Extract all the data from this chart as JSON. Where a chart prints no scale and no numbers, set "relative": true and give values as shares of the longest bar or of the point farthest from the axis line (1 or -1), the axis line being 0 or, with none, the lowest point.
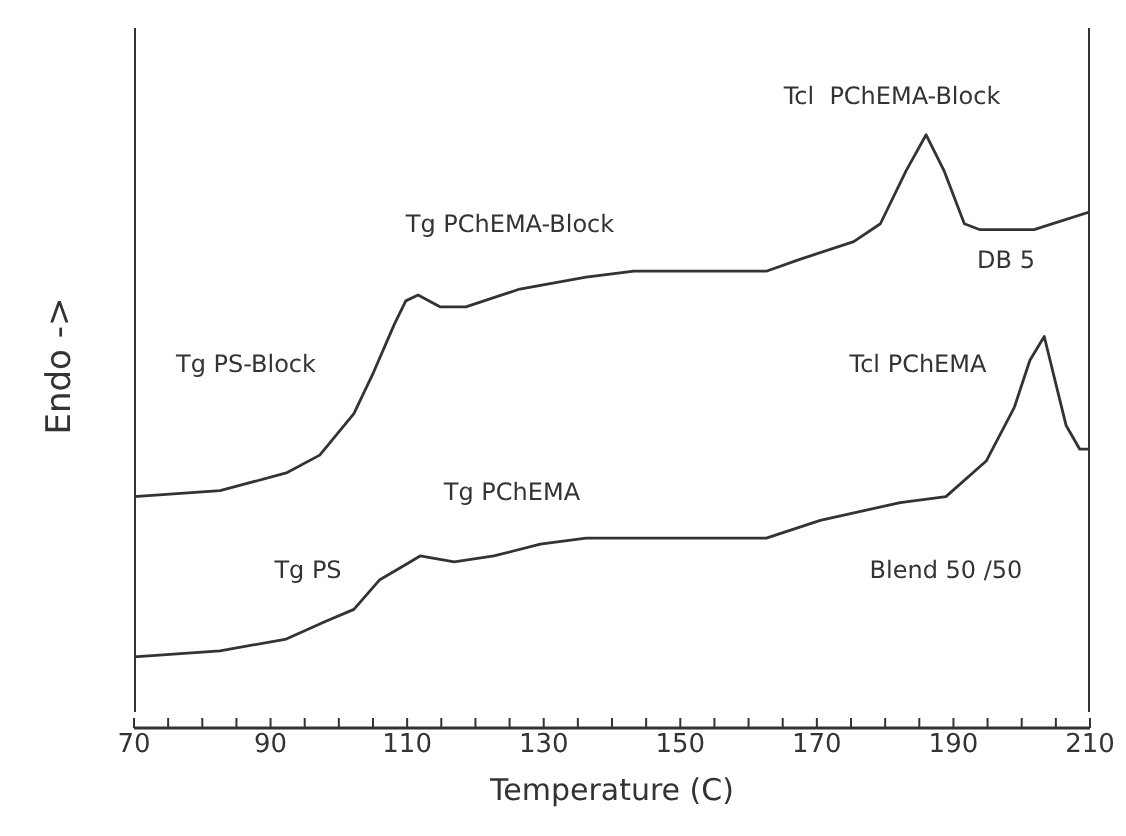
{
  "chart_data": {
    "type": "line",
    "relative": true,
    "xlabel": "Temperature (C)",
    "ylabel": "Endo ->",
    "xlim": [
      70,
      210
    ],
    "xticks": [
      70,
      {
        "value": 75,
        "label": null
      },
      {
        "value": 80,
        "label": null
      },
      {
        "value": 85,
        "label": null
      },
      90,
      {
        "value": 95,
        "label": null
      },
      {
        "value": 100,
        "label": null
      },
      {
        "value": 105,
        "label": null
      },
      110,
      {
        "value": 115,
        "label": null
      },
      {
        "value": 120,
        "label": null
      },
      {
        "value": 125,
        "label": null
      },
      130,
      {
        "value": 135,
        "label": null
      },
      {
        "value": 140,
        "label": null
      },
      {
        "value": 145,
        "label": null
      },
      150,
      {
        "value": 155,
        "label": null
      },
      {
        "value": 160,
        "label": null
      },
      {
        "value": 165,
        "label": null
      },
      170,
      {
        "value": 175,
        "label": null
      },
      {
        "value": 180,
        "label": null
      },
      {
        "value": 185,
        "label": null
      },
      190,
      {
        "value": 195,
        "label": null
      },
      {
        "value": 200,
        "label": null
      },
      {
        "value": 205,
        "label": null
      },
      210
    ],
    "grid": false,
    "legend": false,
    "marker": "none",
    "line_style": "solid",
    "series": [
      {
        "color": "#333333",
        "x": [
          70,
          82.6,
          92.3,
          97.2,
          102.2,
          105.1,
          108.1,
          109.8,
          111.6,
          114.8,
          118.6,
          126.5,
          136.2,
          143.2,
          162.6,
          167.5,
          175.4,
          179.3,
          183.1,
          186,
          188.6,
          191.6,
          193.9,
          201.8,
          210
        ],
        "values": [
          0.39,
          0.4,
          0.43,
          0.46,
          0.53,
          0.6,
          0.68,
          0.72,
          0.73,
          0.71,
          0.71,
          0.74,
          0.76,
          0.77,
          0.77,
          0.79,
          0.82,
          0.85,
          0.94,
          1,
          0.94,
          0.85,
          0.84,
          0.84,
          0.87
        ]
      },
      {
        "color": "#333333",
        "x": [
          70,
          82.6,
          92.3,
          98.1,
          102.2,
          106,
          109,
          111.9,
          116.9,
          122.7,
          129.5,
          136.2,
          143.2,
          162.6,
          170.5,
          182.2,
          188.9,
          194.8,
          198.9,
          201.2,
          203.3,
          205,
          206.5,
          208.5,
          210
        ],
        "values": [
          0.12,
          0.13,
          0.15,
          0.18,
          0.2,
          0.25,
          0.27,
          0.29,
          0.28,
          0.29,
          0.31,
          0.32,
          0.32,
          0.32,
          0.35,
          0.38,
          0.39,
          0.45,
          0.54,
          0.62,
          0.66,
          0.58,
          0.51,
          0.47,
          0.47
        ]
      }
    ],
    "annotations": [
      "Tcl  PChEMA-Block",
      "Tg PChEMA-Block",
      "DB 5",
      "Tg PS-Block",
      "Tcl PChEMA",
      "Tg PChEMA",
      "Tg PS",
      "Blend 50 /50"
    ]
  }
}
